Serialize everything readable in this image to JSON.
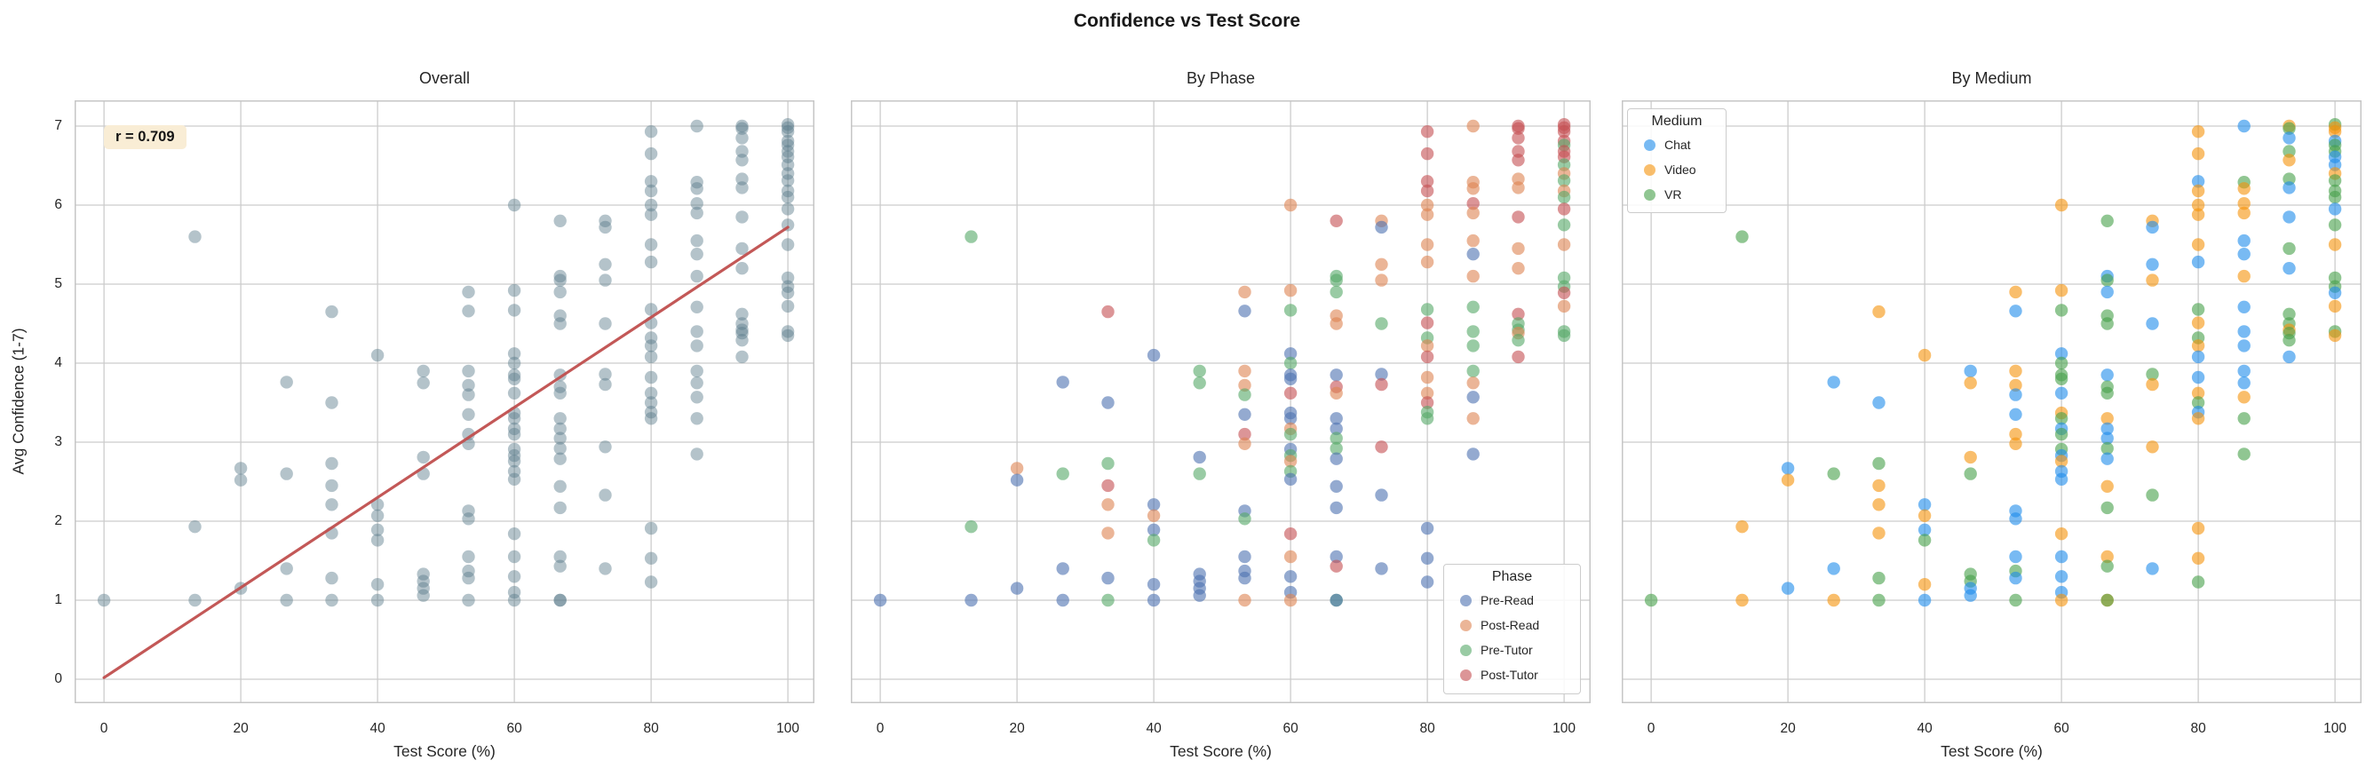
{
  "title": "Confidence vs Test Score",
  "panels": [
    {
      "id": "overall",
      "title": "Overall"
    },
    {
      "id": "by-phase",
      "title": "By Phase"
    },
    {
      "id": "by-medium",
      "title": "By Medium"
    }
  ],
  "x_axis": {
    "label": "Test Score (%)",
    "ticks": [
      0,
      20,
      40,
      60,
      80,
      100
    ]
  },
  "y_axis": {
    "label": "Avg Confidence (1-7)",
    "ticks": [
      0,
      1,
      2,
      3,
      4,
      5,
      6,
      7
    ]
  },
  "annotation": {
    "text": "r = 0.709",
    "bg_color": "#f9edd5"
  },
  "legends": {
    "phase": {
      "title": "Phase"
    },
    "medium": {
      "title": "Medium"
    }
  },
  "chart_data": {
    "type": "scatter",
    "suptitle": "Confidence vs Test Score",
    "subplot_titles": [
      "Overall",
      "By Phase",
      "By Medium"
    ],
    "xlabel": "Test Score (%)",
    "ylabel": "Avg Confidence (1-7)",
    "xlim": [
      -4.3,
      103.9
    ],
    "ylim": [
      -0.3,
      7.33
    ],
    "x_ticks": [
      0,
      20,
      40,
      60,
      80,
      100
    ],
    "y_ticks": [
      0,
      1,
      2,
      3,
      4,
      5,
      6,
      7
    ],
    "grid": true,
    "correlation_label": "r = 0.709",
    "regression_line": {
      "x": [
        0,
        100
      ],
      "y": [
        0.02,
        5.72
      ],
      "color": "#c0504f"
    },
    "overall_point_color": "rgba(89,122,138,0.45)",
    "phases": [
      {
        "label": "Pre-Read",
        "color": "rgba(76,114,176,0.6)"
      },
      {
        "label": "Post-Read",
        "color": "rgba(221,132,82,0.6)"
      },
      {
        "label": "Pre-Tutor",
        "color": "rgba(85,168,104,0.6)"
      },
      {
        "label": "Post-Tutor",
        "color": "rgba(196,78,82,0.6)"
      }
    ],
    "mediums": [
      {
        "label": "Chat",
        "color": "rgba(30,140,235,0.6)"
      },
      {
        "label": "Video",
        "color": "rgba(245,146,10,0.6)"
      },
      {
        "label": "VR",
        "color": "rgba(70,160,73,0.6)"
      }
    ],
    "point_fields": [
      "test_score_pct",
      "avg_confidence",
      "phase_index",
      "medium_index"
    ],
    "points": [
      [
        0,
        1.0,
        0,
        2
      ],
      [
        13.3,
        5.6,
        2,
        2
      ],
      [
        13.3,
        1.93,
        2,
        1
      ],
      [
        13.3,
        1.0,
        0,
        1
      ],
      [
        20,
        2.67,
        1,
        0
      ],
      [
        20,
        2.52,
        0,
        1
      ],
      [
        20,
        1.15,
        0,
        0
      ],
      [
        26.7,
        3.76,
        0,
        0
      ],
      [
        26.7,
        2.6,
        2,
        2
      ],
      [
        26.7,
        1.4,
        0,
        0
      ],
      [
        26.7,
        1.0,
        0,
        1
      ],
      [
        33.3,
        4.65,
        3,
        1
      ],
      [
        33.3,
        3.5,
        0,
        0
      ],
      [
        33.3,
        2.73,
        2,
        2
      ],
      [
        33.3,
        2.45,
        3,
        1
      ],
      [
        33.3,
        2.21,
        1,
        1
      ],
      [
        33.3,
        1.85,
        1,
        1
      ],
      [
        33.3,
        1.28,
        0,
        2
      ],
      [
        33.3,
        1.0,
        2,
        2
      ],
      [
        40,
        4.1,
        0,
        1
      ],
      [
        40,
        2.21,
        0,
        0
      ],
      [
        40,
        2.07,
        1,
        1
      ],
      [
        40,
        1.89,
        0,
        0
      ],
      [
        40,
        1.76,
        2,
        2
      ],
      [
        40,
        1.2,
        0,
        1
      ],
      [
        40,
        1.0,
        0,
        0
      ],
      [
        46.7,
        3.9,
        2,
        0
      ],
      [
        46.7,
        3.75,
        2,
        1
      ],
      [
        46.7,
        2.81,
        0,
        1
      ],
      [
        46.7,
        2.6,
        2,
        2
      ],
      [
        46.7,
        1.33,
        0,
        2
      ],
      [
        46.7,
        1.24,
        0,
        2
      ],
      [
        46.7,
        1.15,
        0,
        0
      ],
      [
        46.7,
        1.06,
        0,
        0
      ],
      [
        53.3,
        4.9,
        1,
        1
      ],
      [
        53.3,
        4.66,
        0,
        0
      ],
      [
        53.3,
        3.9,
        1,
        1
      ],
      [
        53.3,
        3.72,
        1,
        1
      ],
      [
        53.3,
        3.6,
        2,
        0
      ],
      [
        53.3,
        3.35,
        0,
        0
      ],
      [
        53.3,
        3.1,
        3,
        1
      ],
      [
        53.3,
        2.98,
        1,
        1
      ],
      [
        53.3,
        2.13,
        0,
        0
      ],
      [
        53.3,
        2.03,
        2,
        0
      ],
      [
        53.3,
        1.55,
        0,
        0
      ],
      [
        53.3,
        1.37,
        0,
        2
      ],
      [
        53.3,
        1.28,
        0,
        0
      ],
      [
        53.3,
        1.0,
        1,
        2
      ],
      [
        60,
        6.0,
        1,
        1
      ],
      [
        60,
        4.92,
        1,
        1
      ],
      [
        60,
        4.67,
        2,
        2
      ],
      [
        60,
        4.12,
        0,
        0
      ],
      [
        60,
        4.0,
        2,
        2
      ],
      [
        60,
        3.85,
        0,
        2
      ],
      [
        60,
        3.8,
        0,
        2
      ],
      [
        60,
        3.62,
        3,
        0
      ],
      [
        60,
        3.37,
        0,
        1
      ],
      [
        60,
        3.3,
        0,
        2
      ],
      [
        60,
        3.17,
        1,
        0
      ],
      [
        60,
        3.1,
        2,
        2
      ],
      [
        60,
        2.91,
        0,
        2
      ],
      [
        60,
        2.83,
        2,
        0
      ],
      [
        60,
        2.76,
        1,
        1
      ],
      [
        60,
        2.63,
        2,
        0
      ],
      [
        60,
        2.53,
        0,
        0
      ],
      [
        60,
        1.84,
        3,
        1
      ],
      [
        60,
        1.55,
        1,
        0
      ],
      [
        60,
        1.3,
        0,
        0
      ],
      [
        60,
        1.1,
        0,
        0
      ],
      [
        60,
        1.0,
        1,
        1
      ],
      [
        66.7,
        5.8,
        3,
        2
      ],
      [
        66.7,
        5.1,
        2,
        0
      ],
      [
        66.7,
        5.05,
        2,
        2
      ],
      [
        66.7,
        4.9,
        2,
        0
      ],
      [
        66.7,
        4.6,
        1,
        2
      ],
      [
        66.7,
        4.5,
        1,
        2
      ],
      [
        66.7,
        3.85,
        0,
        0
      ],
      [
        66.7,
        3.7,
        3,
        2
      ],
      [
        66.7,
        3.62,
        1,
        2
      ],
      [
        66.7,
        3.3,
        0,
        1
      ],
      [
        66.7,
        3.17,
        0,
        0
      ],
      [
        66.7,
        3.05,
        2,
        0
      ],
      [
        66.7,
        2.92,
        2,
        2
      ],
      [
        66.7,
        2.79,
        0,
        0
      ],
      [
        66.7,
        2.44,
        0,
        1
      ],
      [
        66.7,
        2.17,
        0,
        2
      ],
      [
        66.7,
        1.55,
        0,
        1
      ],
      [
        66.7,
        1.43,
        3,
        2
      ],
      [
        66.7,
        1.0,
        2,
        1
      ],
      [
        66.7,
        1.0,
        0,
        2
      ],
      [
        73.3,
        5.8,
        1,
        1
      ],
      [
        73.3,
        5.72,
        0,
        0
      ],
      [
        73.3,
        5.25,
        1,
        0
      ],
      [
        73.3,
        5.05,
        1,
        1
      ],
      [
        73.3,
        4.5,
        2,
        0
      ],
      [
        73.3,
        3.86,
        0,
        2
      ],
      [
        73.3,
        3.73,
        3,
        1
      ],
      [
        73.3,
        2.94,
        3,
        1
      ],
      [
        73.3,
        2.33,
        0,
        2
      ],
      [
        73.3,
        1.4,
        0,
        0
      ],
      [
        80,
        6.93,
        3,
        1
      ],
      [
        80,
        6.65,
        3,
        1
      ],
      [
        80,
        6.3,
        3,
        0
      ],
      [
        80,
        6.18,
        3,
        1
      ],
      [
        80,
        6.0,
        1,
        1
      ],
      [
        80,
        5.88,
        1,
        1
      ],
      [
        80,
        5.5,
        1,
        1
      ],
      [
        80,
        5.28,
        1,
        0
      ],
      [
        80,
        4.68,
        2,
        2
      ],
      [
        80,
        4.51,
        3,
        1
      ],
      [
        80,
        4.32,
        2,
        2
      ],
      [
        80,
        4.22,
        1,
        1
      ],
      [
        80,
        4.08,
        3,
        0
      ],
      [
        80,
        3.82,
        1,
        0
      ],
      [
        80,
        3.62,
        1,
        1
      ],
      [
        80,
        3.5,
        3,
        2
      ],
      [
        80,
        3.38,
        2,
        0
      ],
      [
        80,
        3.3,
        2,
        1
      ],
      [
        80,
        1.91,
        0,
        1
      ],
      [
        80,
        1.53,
        0,
        1
      ],
      [
        80,
        1.23,
        0,
        2
      ],
      [
        86.7,
        7.0,
        1,
        0
      ],
      [
        86.7,
        6.29,
        1,
        2
      ],
      [
        86.7,
        6.21,
        1,
        1
      ],
      [
        86.7,
        6.02,
        3,
        1
      ],
      [
        86.7,
        5.9,
        1,
        1
      ],
      [
        86.7,
        5.55,
        1,
        0
      ],
      [
        86.7,
        5.38,
        0,
        0
      ],
      [
        86.7,
        5.1,
        1,
        1
      ],
      [
        86.7,
        4.71,
        2,
        0
      ],
      [
        86.7,
        4.4,
        2,
        0
      ],
      [
        86.7,
        4.22,
        2,
        0
      ],
      [
        86.7,
        3.9,
        2,
        0
      ],
      [
        86.7,
        3.75,
        1,
        0
      ],
      [
        86.7,
        3.57,
        0,
        1
      ],
      [
        86.7,
        3.3,
        1,
        2
      ],
      [
        86.7,
        2.85,
        0,
        2
      ],
      [
        93.3,
        7.0,
        3,
        1
      ],
      [
        93.3,
        6.97,
        3,
        2
      ],
      [
        93.3,
        6.85,
        3,
        0
      ],
      [
        93.3,
        6.68,
        3,
        2
      ],
      [
        93.3,
        6.57,
        3,
        1
      ],
      [
        93.3,
        6.33,
        1,
        2
      ],
      [
        93.3,
        6.22,
        1,
        0
      ],
      [
        93.3,
        5.85,
        3,
        0
      ],
      [
        93.3,
        5.45,
        1,
        2
      ],
      [
        93.3,
        5.2,
        1,
        0
      ],
      [
        93.3,
        4.62,
        3,
        2
      ],
      [
        93.3,
        4.5,
        2,
        2
      ],
      [
        93.3,
        4.42,
        2,
        1
      ],
      [
        93.3,
        4.38,
        1,
        2
      ],
      [
        93.3,
        4.29,
        2,
        2
      ],
      [
        93.3,
        4.08,
        3,
        0
      ],
      [
        100,
        7.02,
        3,
        2
      ],
      [
        100,
        6.98,
        3,
        1
      ],
      [
        100,
        6.93,
        3,
        1
      ],
      [
        100,
        6.81,
        3,
        0
      ],
      [
        100,
        6.76,
        2,
        2
      ],
      [
        100,
        6.68,
        3,
        2
      ],
      [
        100,
        6.61,
        3,
        0
      ],
      [
        100,
        6.51,
        2,
        0
      ],
      [
        100,
        6.4,
        1,
        1
      ],
      [
        100,
        6.31,
        2,
        2
      ],
      [
        100,
        6.18,
        1,
        2
      ],
      [
        100,
        6.1,
        2,
        2
      ],
      [
        100,
        5.95,
        3,
        0
      ],
      [
        100,
        5.75,
        2,
        2
      ],
      [
        100,
        5.5,
        1,
        1
      ],
      [
        100,
        5.08,
        2,
        2
      ],
      [
        100,
        4.97,
        2,
        2
      ],
      [
        100,
        4.89,
        3,
        0
      ],
      [
        100,
        4.72,
        1,
        1
      ],
      [
        100,
        4.4,
        2,
        2
      ],
      [
        100,
        4.35,
        2,
        1
      ]
    ]
  }
}
